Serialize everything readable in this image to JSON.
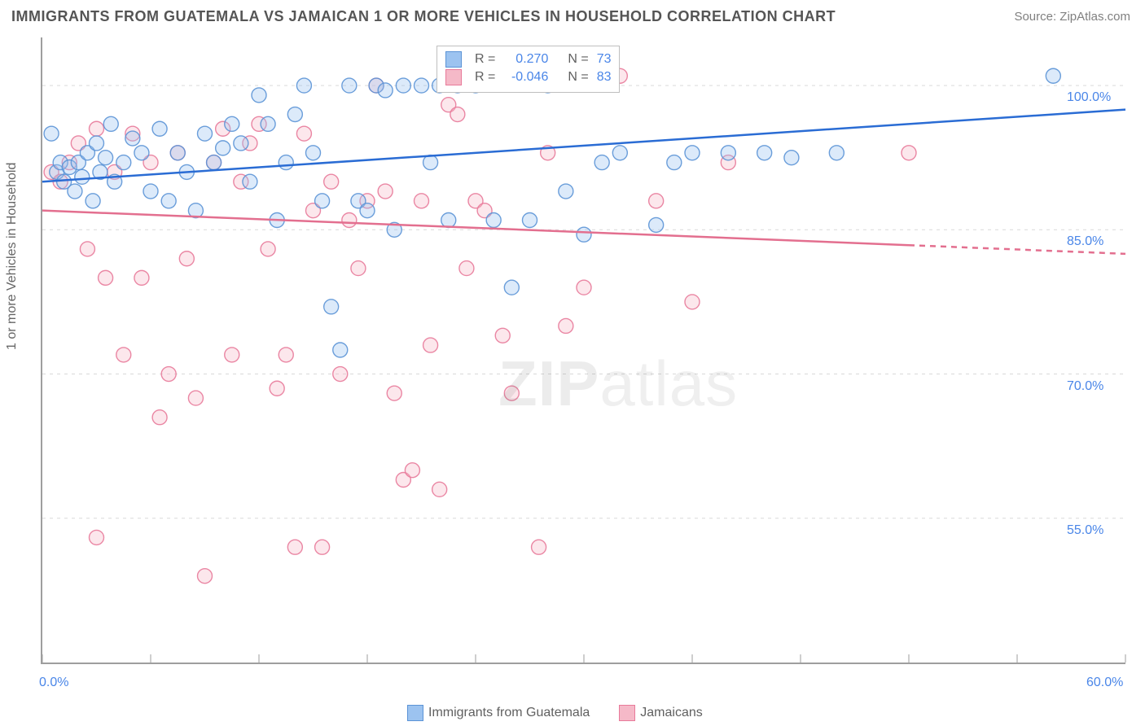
{
  "title": "IMMIGRANTS FROM GUATEMALA VS JAMAICAN 1 OR MORE VEHICLES IN HOUSEHOLD CORRELATION CHART",
  "source": "Source: ZipAtlas.com",
  "ylabel": "1 or more Vehicles in Household",
  "watermark_bold": "ZIP",
  "watermark_thin": "atlas",
  "chart": {
    "type": "scatter-with-regression",
    "background_color": "#ffffff",
    "grid_color": "#d9d9d9",
    "axis_color": "#9e9e9e",
    "tick_label_color": "#4a86e8",
    "xlim": [
      0,
      60
    ],
    "ylim": [
      40,
      105
    ],
    "x_ticks": [
      0,
      6,
      12,
      18,
      24,
      30,
      36,
      42,
      48,
      54,
      60
    ],
    "x_tick_labels_shown": {
      "0": "0.0%",
      "60": "60.0%"
    },
    "y_ticks": [
      55,
      70,
      85,
      100
    ],
    "y_tick_labels": {
      "55": "55.0%",
      "70": "70.0%",
      "85": "85.0%",
      "100": "100.0%"
    },
    "marker_radius": 9,
    "marker_fill_opacity": 0.35,
    "marker_stroke_opacity": 0.9,
    "line_width": 2.5,
    "series": [
      {
        "name": "Immigrants from Guatemala",
        "legend_label": "Immigrants from Guatemala",
        "color_fill": "#9cc3f0",
        "color_stroke": "#5b93d6",
        "line_color": "#2a6cd4",
        "R": "0.270",
        "N": "73",
        "regression": {
          "x1": 0,
          "y1": 90,
          "x2": 60,
          "y2": 97.5,
          "dash_from_x": null
        },
        "points": [
          [
            0.5,
            95
          ],
          [
            0.8,
            91
          ],
          [
            1,
            92
          ],
          [
            1.2,
            90
          ],
          [
            1.5,
            91.5
          ],
          [
            1.8,
            89
          ],
          [
            2,
            92
          ],
          [
            2.2,
            90.5
          ],
          [
            2.5,
            93
          ],
          [
            2.8,
            88
          ],
          [
            3,
            94
          ],
          [
            3.2,
            91
          ],
          [
            3.5,
            92.5
          ],
          [
            3.8,
            96
          ],
          [
            4,
            90
          ],
          [
            4.5,
            92
          ],
          [
            5,
            94.5
          ],
          [
            5.5,
            93
          ],
          [
            6,
            89
          ],
          [
            6.5,
            95.5
          ],
          [
            7,
            88
          ],
          [
            7.5,
            93
          ],
          [
            8,
            91
          ],
          [
            8.5,
            87
          ],
          [
            9,
            95
          ],
          [
            9.5,
            92
          ],
          [
            10,
            93.5
          ],
          [
            10.5,
            96
          ],
          [
            11,
            94
          ],
          [
            11.5,
            90
          ],
          [
            12,
            99
          ],
          [
            12.5,
            96
          ],
          [
            13,
            86
          ],
          [
            13.5,
            92
          ],
          [
            14,
            97
          ],
          [
            14.5,
            100
          ],
          [
            15,
            93
          ],
          [
            15.5,
            88
          ],
          [
            16,
            77
          ],
          [
            16.5,
            72.5
          ],
          [
            17,
            100
          ],
          [
            17.5,
            88
          ],
          [
            18,
            87
          ],
          [
            18.5,
            100
          ],
          [
            19,
            99.5
          ],
          [
            19.5,
            85
          ],
          [
            20,
            100
          ],
          [
            21,
            100
          ],
          [
            21.5,
            92
          ],
          [
            22,
            100
          ],
          [
            22.5,
            86
          ],
          [
            23,
            100
          ],
          [
            24,
            100
          ],
          [
            25,
            86
          ],
          [
            26,
            79
          ],
          [
            27,
            86
          ],
          [
            28,
            100
          ],
          [
            29,
            89
          ],
          [
            30,
            84.5
          ],
          [
            31,
            92
          ],
          [
            32,
            93
          ],
          [
            34,
            85.5
          ],
          [
            35,
            92
          ],
          [
            36,
            93
          ],
          [
            38,
            93
          ],
          [
            40,
            93
          ],
          [
            41.5,
            92.5
          ],
          [
            44,
            93
          ],
          [
            56,
            101
          ]
        ]
      },
      {
        "name": "Jamaicans",
        "legend_label": "Jamaicans",
        "color_fill": "#f5b9c8",
        "color_stroke": "#e87a9a",
        "line_color": "#e36f8f",
        "R": "-0.046",
        "N": "83",
        "regression": {
          "x1": 0,
          "y1": 87,
          "x2": 60,
          "y2": 82.5,
          "dash_from_x": 48
        },
        "points": [
          [
            0.5,
            91
          ],
          [
            1,
            90
          ],
          [
            1.5,
            92
          ],
          [
            2,
            94
          ],
          [
            2.5,
            83
          ],
          [
            3,
            95.5
          ],
          [
            3,
            53
          ],
          [
            3.5,
            80
          ],
          [
            4,
            91
          ],
          [
            4.5,
            72
          ],
          [
            5,
            95
          ],
          [
            5.5,
            80
          ],
          [
            6,
            92
          ],
          [
            6.5,
            65.5
          ],
          [
            7,
            70
          ],
          [
            7.5,
            93
          ],
          [
            8,
            82
          ],
          [
            8.5,
            67.5
          ],
          [
            9,
            49
          ],
          [
            9.5,
            92
          ],
          [
            10,
            95.5
          ],
          [
            10.5,
            72
          ],
          [
            11,
            90
          ],
          [
            11.5,
            94
          ],
          [
            12,
            96
          ],
          [
            12.5,
            83
          ],
          [
            13,
            68.5
          ],
          [
            13.5,
            72
          ],
          [
            14,
            52
          ],
          [
            14.5,
            95
          ],
          [
            15,
            87
          ],
          [
            15.5,
            52
          ],
          [
            16,
            90
          ],
          [
            16.5,
            70
          ],
          [
            17,
            86
          ],
          [
            17.5,
            81
          ],
          [
            18,
            88
          ],
          [
            18.5,
            100
          ],
          [
            19,
            89
          ],
          [
            19.5,
            68
          ],
          [
            20,
            59
          ],
          [
            20.5,
            60
          ],
          [
            21,
            88
          ],
          [
            21.5,
            73
          ],
          [
            22,
            58
          ],
          [
            22.5,
            98
          ],
          [
            23,
            97
          ],
          [
            23.5,
            81
          ],
          [
            24,
            88
          ],
          [
            24.5,
            87
          ],
          [
            25,
            101
          ],
          [
            25.5,
            74
          ],
          [
            26,
            68
          ],
          [
            27,
            101
          ],
          [
            27.5,
            52
          ],
          [
            28,
            93
          ],
          [
            29,
            75
          ],
          [
            30,
            79
          ],
          [
            32,
            101
          ],
          [
            34,
            88
          ],
          [
            36,
            77.5
          ],
          [
            38,
            92
          ],
          [
            48,
            93
          ]
        ]
      }
    ]
  },
  "top_legend": {
    "border_color": "#bfbfbf",
    "rows": [
      {
        "swatch_fill": "#9cc3f0",
        "swatch_stroke": "#5b93d6",
        "r_label": "R =",
        "r_val": "0.270",
        "n_label": "N =",
        "n_val": "73"
      },
      {
        "swatch_fill": "#f5b9c8",
        "swatch_stroke": "#e87a9a",
        "r_label": "R =",
        "r_val": "-0.046",
        "n_label": "N =",
        "n_val": "83"
      }
    ]
  },
  "bottom_legend": [
    {
      "swatch_fill": "#9cc3f0",
      "swatch_stroke": "#5b93d6",
      "label": "Immigrants from Guatemala"
    },
    {
      "swatch_fill": "#f5b9c8",
      "swatch_stroke": "#e87a9a",
      "label": "Jamaicans"
    }
  ]
}
